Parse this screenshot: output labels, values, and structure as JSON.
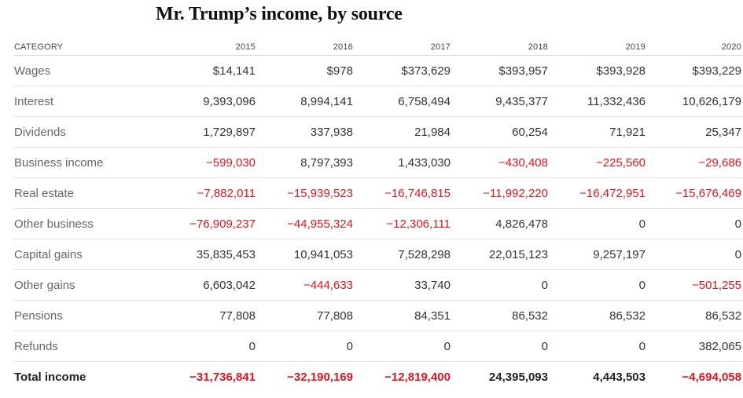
{
  "chart_data": {
    "type": "table",
    "title": "Mr. Trump’s income, by source",
    "columns": [
      "CATEGORY",
      "2015",
      "2016",
      "2017",
      "2018",
      "2019",
      "2020"
    ],
    "rows": [
      {
        "label": "Wages",
        "values": [
          "$14,141",
          "$978",
          "$373,629",
          "$393,957",
          "$393,928",
          "$393,229"
        ]
      },
      {
        "label": "Interest",
        "values": [
          "9,393,096",
          "8,994,141",
          "6,758,494",
          "9,435,377",
          "11,332,436",
          "10,626,179"
        ]
      },
      {
        "label": "Dividends",
        "values": [
          "1,729,897",
          "337,938",
          "21,984",
          "60,254",
          "71,921",
          "25,347"
        ]
      },
      {
        "label": "Business income",
        "values": [
          "−599,030",
          "8,797,393",
          "1,433,030",
          "−430,408",
          "−225,560",
          "−29,686"
        ]
      },
      {
        "label": "Real estate",
        "values": [
          "−7,882,011",
          "−15,939,523",
          "−16,746,815",
          "−11,992,220",
          "−16,472,951",
          "−15,676,469"
        ]
      },
      {
        "label": "Other business",
        "values": [
          "−76,909,237",
          "−44,955,324",
          "−12,306,111",
          "4,826,478",
          "0",
          "0"
        ]
      },
      {
        "label": "Capital gains",
        "values": [
          "35,835,453",
          "10,941,053",
          "7,528,298",
          "22,015,123",
          "9,257,197",
          "0"
        ]
      },
      {
        "label": "Other gains",
        "values": [
          "6,603,042",
          "−444,633",
          "33,740",
          "0",
          "0",
          "−501,255"
        ]
      },
      {
        "label": "Pensions",
        "values": [
          "77,808",
          "77,808",
          "84,351",
          "86,532",
          "86,532",
          "86,532"
        ]
      },
      {
        "label": "Refunds",
        "values": [
          "0",
          "0",
          "0",
          "0",
          "0",
          "382,065"
        ]
      }
    ],
    "total": {
      "label": "Total income",
      "values": [
        "−31,736,841",
        "−32,190,169",
        "−12,819,400",
        "24,395,093",
        "4,443,503",
        "−4,694,058"
      ]
    },
    "negative_color": "#e0141e",
    "text_color": "#333333"
  }
}
